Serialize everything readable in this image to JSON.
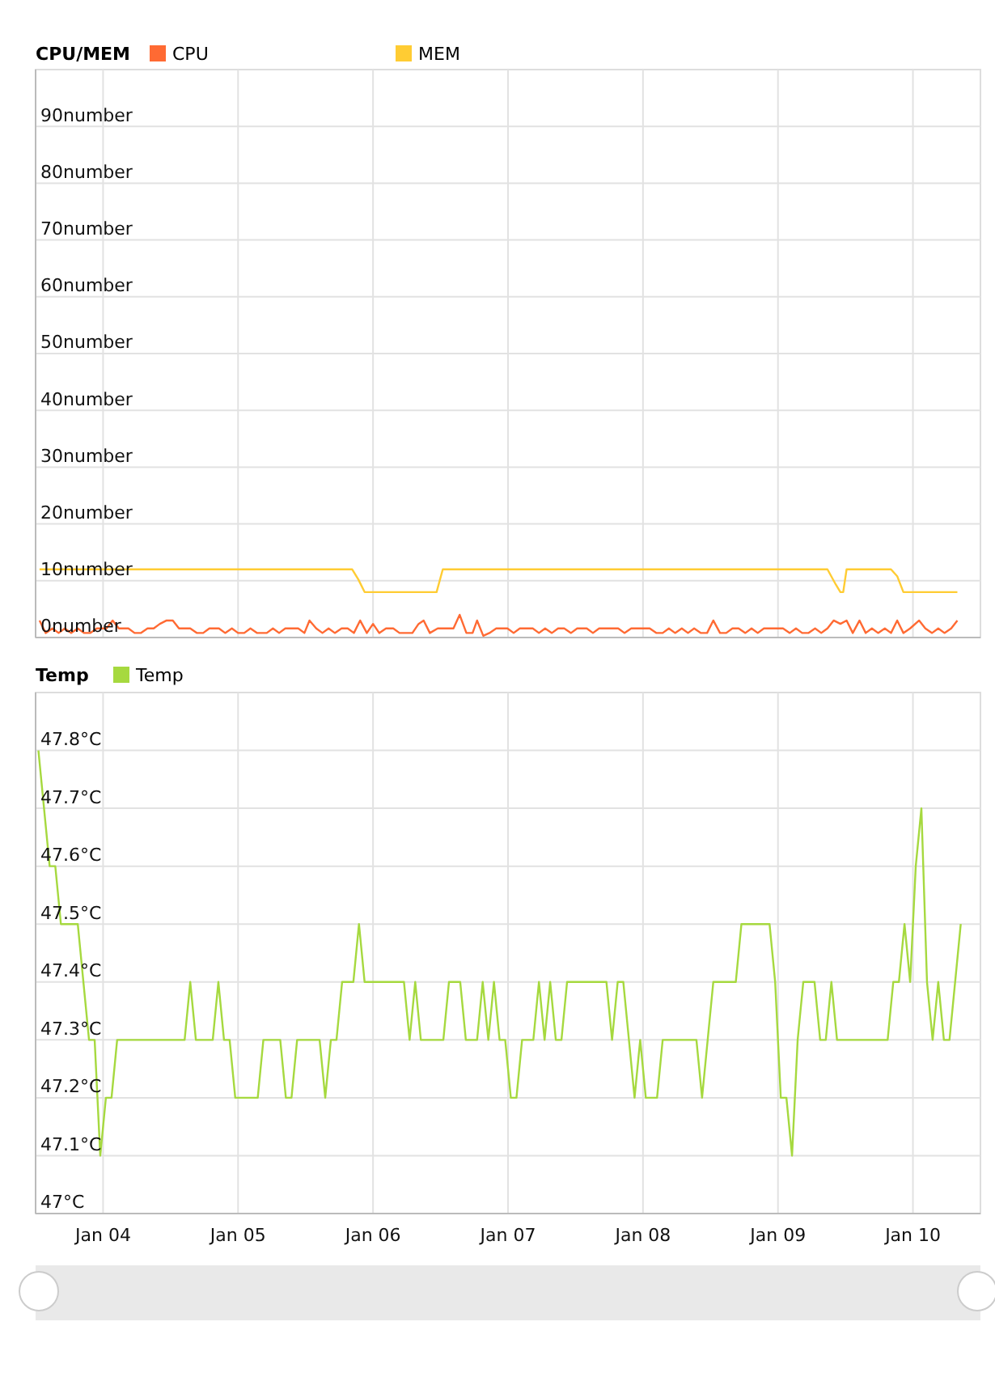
{
  "chart_data": [
    {
      "type": "line",
      "title": "CPU/MEM",
      "legend": "top",
      "grid": true,
      "tick_labels": "y",
      "marker": "none",
      "xlim": [
        "--01-04",
        "--01-11"
      ],
      "xticks": [
        {
          "value": "--01-04T12:00",
          "label": null
        },
        {
          "value": "--01-05T12:00",
          "label": null
        },
        {
          "value": "--01-06T12:00",
          "label": null
        },
        {
          "value": "--01-07T12:00",
          "label": null
        },
        {
          "value": "--01-08T12:00",
          "label": null
        },
        {
          "value": "--01-09T12:00",
          "label": null
        },
        {
          "value": "--01-10T12:00",
          "label": null
        }
      ],
      "ylim": [
        0,
        100
      ],
      "yticks": [
        {
          "value": 0,
          "label": "0number"
        },
        {
          "value": 10,
          "label": "10number"
        },
        {
          "value": 20,
          "label": "20number"
        },
        {
          "value": 30,
          "label": "30number"
        },
        {
          "value": 40,
          "label": "40number"
        },
        {
          "value": 50,
          "label": "50number"
        },
        {
          "value": 60,
          "label": "60number"
        },
        {
          "value": 70,
          "label": "70number"
        },
        {
          "value": 80,
          "label": "80number"
        },
        {
          "value": 90,
          "label": "90number"
        }
      ],
      "series": [
        {
          "name": "CPU",
          "color": "#ff6a33",
          "x": [
            "--01-04T00:42",
            "--01-04T01:48",
            "--01-04T03:00",
            "--01-04T04:06",
            "--01-04T05:12",
            "--01-04T06:18",
            "--01-04T07:30",
            "--01-04T08:36",
            "--01-04T09:42",
            "--01-04T10:54",
            "--01-04T12:36",
            "--01-04T13:42",
            "--01-04T14:48",
            "--01-04T16:30",
            "--01-04T17:36",
            "--01-04T18:42",
            "--01-04T19:54",
            "--01-04T21:00",
            "--01-04T22:06",
            "--01-04T23:18",
            "--01-05T00:24",
            "--01-05T01:30",
            "--01-05T03:30",
            "--01-05T04:42",
            "--01-05T05:48",
            "--01-05T06:54",
            "--01-05T08:36",
            "--01-05T09:42",
            "--01-05T10:54",
            "--01-05T12:00",
            "--01-05T13:06",
            "--01-05T14:12",
            "--01-05T15:24",
            "--01-05T17:06",
            "--01-05T18:12",
            "--01-05T19:18",
            "--01-05T20:24",
            "--01-05T22:42",
            "--01-05T23:48",
            "--01-06T00:42",
            "--01-06T01:54",
            "--01-06T03:00",
            "--01-06T04:06",
            "--01-06T05:12",
            "--01-06T06:24",
            "--01-06T07:30",
            "--01-06T08:36",
            "--01-06T09:42",
            "--01-06T10:54",
            "--01-06T12:00",
            "--01-06T13:06",
            "--01-06T14:18",
            "--01-06T15:36",
            "--01-06T16:42",
            "--01-06T19:00",
            "--01-06T20:06",
            "--01-06T21:00",
            "--01-06T22:06",
            "--01-06T23:30",
            "--01-07T02:18",
            "--01-07T03:24",
            "--01-07T04:36",
            "--01-07T05:42",
            "--01-07T06:30",
            "--01-07T07:36",
            "--01-07T08:42",
            "--01-07T09:54",
            "--01-07T11:54",
            "--01-07T13:00",
            "--01-07T14:06",
            "--01-07T16:24",
            "--01-07T17:30",
            "--01-07T18:36",
            "--01-07T19:48",
            "--01-07T20:54",
            "--01-07T22:00",
            "--01-07T23:12",
            "--01-08T00:18",
            "--01-08T02:00",
            "--01-08T03:06",
            "--01-08T04:12",
            "--01-08T07:36",
            "--01-08T08:42",
            "--01-08T09:54",
            "--01-08T13:12",
            "--01-08T14:24",
            "--01-08T15:30",
            "--01-08T16:36",
            "--01-08T17:42",
            "--01-08T18:54",
            "--01-08T20:00",
            "--01-08T21:06",
            "--01-08T22:18",
            "--01-08T23:24",
            "--01-09T00:30",
            "--01-09T01:42",
            "--01-09T02:48",
            "--01-09T03:54",
            "--01-09T05:00",
            "--01-09T06:12",
            "--01-09T07:18",
            "--01-09T08:24",
            "--01-09T09:30",
            "--01-09T12:54",
            "--01-09T14:06",
            "--01-09T15:12",
            "--01-09T16:18",
            "--01-09T17:24",
            "--01-09T18:36",
            "--01-09T19:42",
            "--01-09T20:48",
            "--01-09T21:54",
            "--01-09T23:06",
            "--01-10T00:12",
            "--01-10T01:18",
            "--01-10T02:30",
            "--01-10T03:36",
            "--01-10T04:42",
            "--01-10T05:48",
            "--01-10T07:00",
            "--01-10T08:06",
            "--01-10T09:12",
            "--01-10T10:18",
            "--01-10T11:30",
            "--01-10T13:06",
            "--01-10T14:12",
            "--01-10T15:24",
            "--01-10T16:30",
            "--01-10T17:36",
            "--01-10T18:48",
            "--01-10T19:54"
          ],
          "values": [
            3.0,
            0.8,
            1.6,
            0.8,
            1.6,
            0.8,
            1.6,
            0.8,
            0.8,
            1.6,
            1.6,
            3.0,
            1.6,
            1.6,
            0.8,
            0.8,
            1.6,
            1.6,
            2.4,
            3.0,
            3.0,
            1.6,
            1.6,
            0.8,
            0.8,
            1.6,
            1.6,
            0.8,
            1.6,
            0.8,
            0.8,
            1.6,
            0.8,
            0.8,
            1.6,
            0.8,
            1.6,
            1.6,
            0.8,
            3.0,
            1.6,
            0.8,
            1.6,
            0.8,
            1.6,
            1.6,
            0.8,
            3.0,
            0.8,
            2.4,
            0.8,
            1.6,
            1.6,
            0.8,
            0.8,
            2.4,
            3.0,
            0.8,
            1.6,
            1.6,
            4.0,
            0.8,
            0.8,
            3.0,
            0.3,
            0.8,
            1.6,
            1.6,
            0.8,
            1.6,
            1.6,
            0.8,
            1.6,
            0.8,
            1.6,
            1.6,
            0.8,
            1.6,
            1.6,
            0.8,
            1.6,
            1.6,
            0.8,
            1.6,
            1.6,
            0.8,
            0.8,
            1.6,
            0.8,
            1.6,
            0.8,
            1.6,
            0.8,
            0.8,
            3.0,
            0.8,
            0.8,
            1.6,
            1.6,
            0.8,
            1.6,
            0.8,
            1.6,
            1.6,
            0.8,
            1.6,
            0.8,
            0.8,
            1.6,
            0.8,
            1.6,
            3.0,
            2.4,
            3.0,
            0.8,
            3.0,
            0.8,
            1.6,
            0.8,
            1.6,
            0.8,
            3.0,
            0.8,
            1.6,
            3.0,
            1.6,
            0.8,
            1.6,
            0.8,
            1.6,
            3.0
          ]
        },
        {
          "name": "MEM",
          "color": "#ffcc33",
          "x": [
            "--01-04T00:42",
            "--01-06T08:18",
            "--01-06T09:24",
            "--01-06T10:30",
            "--01-06T23:18",
            "--01-07T00:24",
            "--01-09T20:48",
            "--01-09T22:18",
            "--01-09T23:06",
            "--01-09T23:36",
            "--01-10T00:12",
            "--01-10T08:06",
            "--01-10T09:12",
            "--01-10T10:18",
            "--01-10T19:54"
          ],
          "values": [
            12.0,
            12.0,
            10.2,
            8.0,
            8.0,
            12.0,
            12.0,
            9.3,
            8.0,
            8.0,
            12.0,
            12.0,
            10.8,
            8.0,
            8.0
          ]
        }
      ]
    },
    {
      "type": "line",
      "title": "Temp",
      "legend": "top",
      "grid": true,
      "marker": "none",
      "xlim": [
        "--01-04",
        "--01-11"
      ],
      "xticks": [
        {
          "value": "--01-04T12:00",
          "label": "Jan 04"
        },
        {
          "value": "--01-05T12:00",
          "label": "Jan 05"
        },
        {
          "value": "--01-06T12:00",
          "label": "Jan 06"
        },
        {
          "value": "--01-07T12:00",
          "label": "Jan 07"
        },
        {
          "value": "--01-08T12:00",
          "label": "Jan 08"
        },
        {
          "value": "--01-09T12:00",
          "label": "Jan 09"
        },
        {
          "value": "--01-10T12:00",
          "label": "Jan 10"
        }
      ],
      "ylim": [
        47,
        47.9
      ],
      "yticks": [
        {
          "value": 47,
          "label": "47°C"
        },
        {
          "value": 47.1,
          "label": "47.1°C"
        },
        {
          "value": 47.2,
          "label": "47.2°C"
        },
        {
          "value": 47.3,
          "label": "47.3°C"
        },
        {
          "value": 47.4,
          "label": "47.4°C"
        },
        {
          "value": 47.5,
          "label": "47.5°C"
        },
        {
          "value": 47.6,
          "label": "47.6°C"
        },
        {
          "value": 47.7,
          "label": "47.7°C"
        },
        {
          "value": 47.8,
          "label": "47.8°C"
        }
      ],
      "series": [
        {
          "name": "Temp",
          "color": "#a6d93f",
          "x": [
            "--01-04T00:30",
            "--01-04T02:30",
            "--01-04T03:30",
            "--01-04T04:30",
            "--01-04T07:30",
            "--01-04T08:30",
            "--01-04T09:30",
            "--01-04T10:30",
            "--01-04T11:30",
            "--01-04T12:30",
            "--01-04T13:30",
            "--01-04T14:30",
            "--01-05T02:30",
            "--01-05T03:30",
            "--01-05T04:30",
            "--01-05T07:30",
            "--01-05T08:30",
            "--01-05T09:30",
            "--01-05T10:30",
            "--01-05T11:30",
            "--01-05T15:30",
            "--01-05T16:30",
            "--01-05T19:30",
            "--01-05T20:30",
            "--01-05T21:30",
            "--01-05T22:30",
            "--01-06T02:30",
            "--01-06T03:30",
            "--01-06T04:30",
            "--01-06T05:30",
            "--01-06T06:30",
            "--01-06T08:30",
            "--01-06T09:30",
            "--01-06T10:30",
            "--01-06T17:30",
            "--01-06T18:30",
            "--01-06T19:30",
            "--01-06T20:30",
            "--01-07T00:30",
            "--01-07T01:30",
            "--01-07T03:30",
            "--01-07T04:30",
            "--01-07T06:30",
            "--01-07T07:30",
            "--01-07T08:30",
            "--01-07T09:30",
            "--01-07T10:30",
            "--01-07T11:30",
            "--01-07T12:30",
            "--01-07T13:30",
            "--01-07T14:30",
            "--01-07T16:30",
            "--01-07T17:30",
            "--01-07T18:30",
            "--01-07T19:30",
            "--01-07T20:30",
            "--01-07T21:30",
            "--01-07T22:30",
            "--01-08T05:30",
            "--01-08T06:30",
            "--01-08T07:30",
            "--01-08T08:30",
            "--01-08T09:30",
            "--01-08T10:30",
            "--01-08T11:30",
            "--01-08T12:30",
            "--01-08T14:30",
            "--01-08T15:30",
            "--01-08T21:30",
            "--01-08T22:30",
            "--01-08T23:30",
            "--01-09T00:30",
            "--01-09T04:30",
            "--01-09T05:30",
            "--01-09T10:30",
            "--01-09T11:30",
            "--01-09T12:30",
            "--01-09T13:30",
            "--01-09T14:30",
            "--01-09T15:30",
            "--01-09T16:30",
            "--01-09T18:30",
            "--01-09T19:30",
            "--01-09T20:30",
            "--01-09T21:30",
            "--01-09T22:30",
            "--01-10T07:30",
            "--01-10T08:30",
            "--01-10T09:30",
            "--01-10T10:30",
            "--01-10T11:30",
            "--01-10T12:30",
            "--01-10T13:30",
            "--01-10T14:30",
            "--01-10T15:30",
            "--01-10T16:30",
            "--01-10T17:30",
            "--01-10T18:30",
            "--01-10T20:30"
          ],
          "values": [
            47.8,
            47.6,
            47.6,
            47.5,
            47.5,
            47.4,
            47.3,
            47.3,
            47.1,
            47.2,
            47.2,
            47.3,
            47.3,
            47.4,
            47.3,
            47.3,
            47.4,
            47.3,
            47.3,
            47.2,
            47.2,
            47.3,
            47.3,
            47.2,
            47.2,
            47.3,
            47.3,
            47.2,
            47.3,
            47.3,
            47.4,
            47.4,
            47.5,
            47.4,
            47.4,
            47.3,
            47.4,
            47.3,
            47.3,
            47.4,
            47.4,
            47.3,
            47.3,
            47.4,
            47.3,
            47.4,
            47.3,
            47.3,
            47.2,
            47.2,
            47.3,
            47.3,
            47.4,
            47.3,
            47.4,
            47.3,
            47.3,
            47.4,
            47.4,
            47.3,
            47.4,
            47.4,
            47.3,
            47.2,
            47.3,
            47.2,
            47.2,
            47.3,
            47.3,
            47.2,
            47.3,
            47.4,
            47.4,
            47.5,
            47.5,
            47.4,
            47.2,
            47.2,
            47.1,
            47.3,
            47.4,
            47.4,
            47.3,
            47.3,
            47.4,
            47.3,
            47.3,
            47.4,
            47.4,
            47.5,
            47.4,
            47.6,
            47.7,
            47.4,
            47.3,
            47.4,
            47.3,
            47.3,
            47.5
          ]
        }
      ]
    }
  ]
}
